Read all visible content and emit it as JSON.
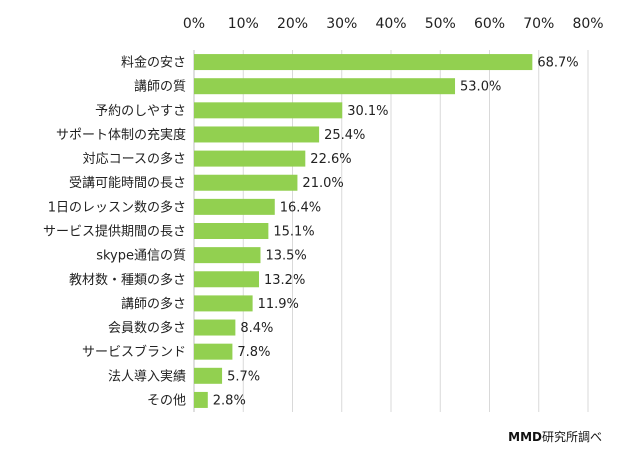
{
  "chart_data": {
    "type": "bar",
    "orientation": "horizontal",
    "categories": [
      "料金の安さ",
      "講師の質",
      "予約のしやすさ",
      "サポート体制の充実度",
      "対応コースの多さ",
      "受講可能時間の長さ",
      "1日のレッスン数の多さ",
      "サービス提供期間の長さ",
      "skype通信の質",
      "教材数・種類の多さ",
      "講師の多さ",
      "会員数の多さ",
      "サービスブランド",
      "法人導入実績",
      "その他"
    ],
    "values": [
      68.7,
      53.0,
      30.1,
      25.4,
      22.6,
      21.0,
      16.4,
      15.1,
      13.5,
      13.2,
      11.9,
      8.4,
      7.8,
      5.7,
      2.8
    ],
    "value_labels": [
      "68.7%",
      "53.0%",
      "30.1%",
      "25.4%",
      "22.6%",
      "21.0%",
      "16.4%",
      "15.1%",
      "13.5%",
      "13.2%",
      "11.9%",
      "8.4%",
      "7.8%",
      "5.7%",
      "2.8%"
    ],
    "x_ticks": [
      "0%",
      "10%",
      "20%",
      "30%",
      "40%",
      "50%",
      "60%",
      "70%",
      "80%"
    ],
    "xlim": [
      0,
      80
    ],
    "x_axis_position": "top",
    "grid": true,
    "legend": "none",
    "bar_color": "#92D050",
    "grid_color": "#d9d9d9"
  },
  "source": {
    "brand": "MMD",
    "text": "研究所調べ"
  }
}
